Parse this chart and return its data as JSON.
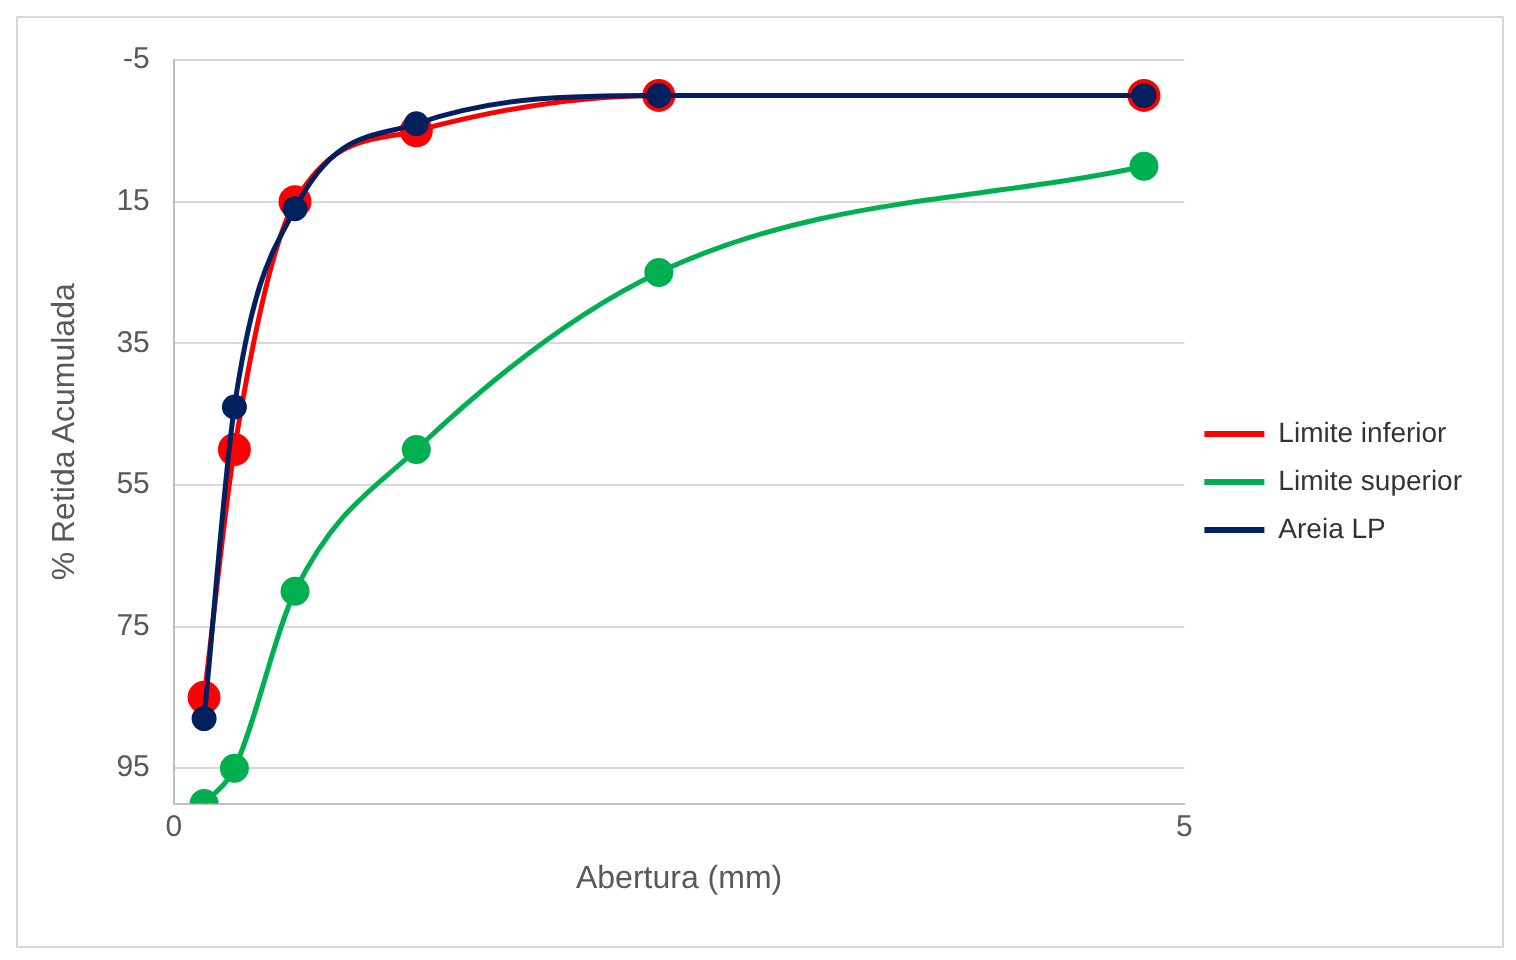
{
  "chart_data": {
    "type": "line",
    "xlabel": "Abertura (mm)",
    "ylabel": "% Retida Acumulada",
    "xlim": [
      0,
      5
    ],
    "xticks": [
      0,
      5
    ],
    "ylim": [
      100,
      -5
    ],
    "yticks": [
      -5,
      15,
      35,
      55,
      75,
      95
    ],
    "grid": "y",
    "legend": "right",
    "marker": "circle",
    "line_style": "solid",
    "series": [
      {
        "name": "Limite inferior",
        "color": "#ff0000",
        "x": [
          0.15,
          0.3,
          0.6,
          1.2,
          2.4,
          4.8
        ],
        "values": [
          85,
          50,
          15,
          5,
          0,
          0
        ]
      },
      {
        "name": "Limite superior",
        "color": "#00b050",
        "x": [
          0.15,
          0.3,
          0.6,
          1.2,
          2.4,
          4.8
        ],
        "values": [
          100,
          95,
          70,
          50,
          25,
          10
        ]
      },
      {
        "name": "Areia LP",
        "color": "#002060",
        "x": [
          0.15,
          0.3,
          0.6,
          1.2,
          2.4,
          4.8
        ],
        "values": [
          88,
          44,
          16,
          4,
          0,
          0
        ]
      }
    ]
  }
}
